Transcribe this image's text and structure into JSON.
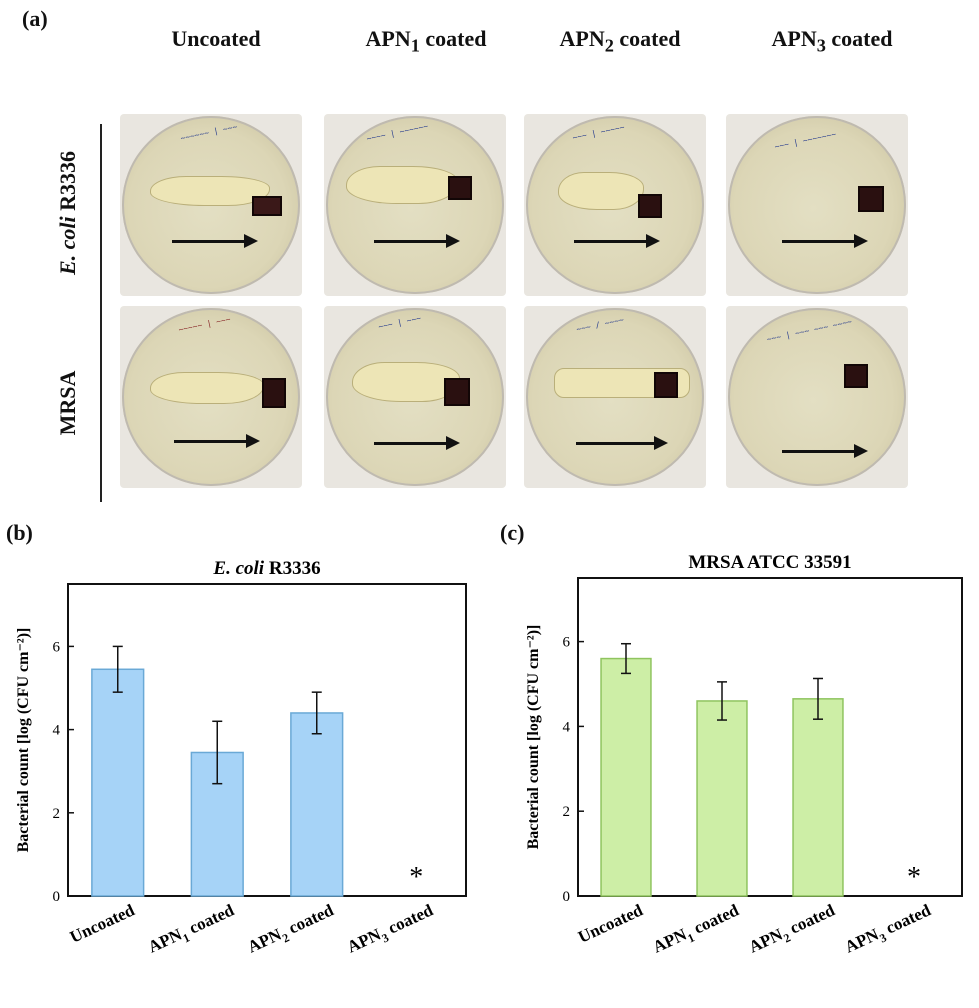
{
  "panels": {
    "a_label": "(a)",
    "b_label": "(b)",
    "c_label": "(c)"
  },
  "photo_grid": {
    "columns": [
      {
        "prefix": "Uncoated",
        "sub": "",
        "suffix": ""
      },
      {
        "prefix": "APN",
        "sub": "1",
        "suffix": " coated"
      },
      {
        "prefix": "APN",
        "sub": "2",
        "suffix": " coated"
      },
      {
        "prefix": "APN",
        "sub": "3",
        "suffix": " coated"
      }
    ],
    "rows": [
      {
        "italic": "E. coli",
        "rest": " R3336"
      },
      {
        "italic": "",
        "rest": "MRSA"
      }
    ]
  },
  "chart_data": [
    {
      "type": "bar",
      "title_italic": "E. coli",
      "title_rest": " R3336",
      "ylabel": "Bacterial count [log (CFU cm⁻²)]",
      "categories": [
        {
          "prefix": "Uncoated",
          "sub": "",
          "suffix": ""
        },
        {
          "prefix": "APN",
          "sub": "1",
          "suffix": " coated"
        },
        {
          "prefix": "APN",
          "sub": "2",
          "suffix": " coated"
        },
        {
          "prefix": "APN",
          "sub": "3",
          "suffix": " coated"
        }
      ],
      "values": [
        5.45,
        3.45,
        4.4,
        null
      ],
      "errors": [
        0.55,
        0.75,
        0.5,
        null
      ],
      "markers": [
        "",
        "",
        "",
        "*"
      ],
      "yticks": [
        0,
        2,
        4,
        6
      ],
      "ylim": [
        0,
        7.5
      ],
      "bar_color": "#a6d3f7",
      "bar_stroke": "#6aa9d6"
    },
    {
      "type": "bar",
      "title_italic": "",
      "title_rest": "MRSA ATCC 33591",
      "ylabel": "Bacterial count [log (CFU cm⁻²)]",
      "categories": [
        {
          "prefix": "Uncoated",
          "sub": "",
          "suffix": ""
        },
        {
          "prefix": "APN",
          "sub": "1",
          "suffix": " coated"
        },
        {
          "prefix": "APN",
          "sub": "2",
          "suffix": " coated"
        },
        {
          "prefix": "APN",
          "sub": "3",
          "suffix": " coated"
        }
      ],
      "values": [
        5.6,
        4.6,
        4.65,
        null
      ],
      "errors": [
        0.35,
        0.45,
        0.48,
        null
      ],
      "markers": [
        "",
        "",
        "",
        "*"
      ],
      "yticks": [
        0,
        2,
        4,
        6
      ],
      "ylim": [
        0,
        7.5
      ],
      "bar_color": "#cdeea6",
      "bar_stroke": "#8fc45f"
    }
  ]
}
